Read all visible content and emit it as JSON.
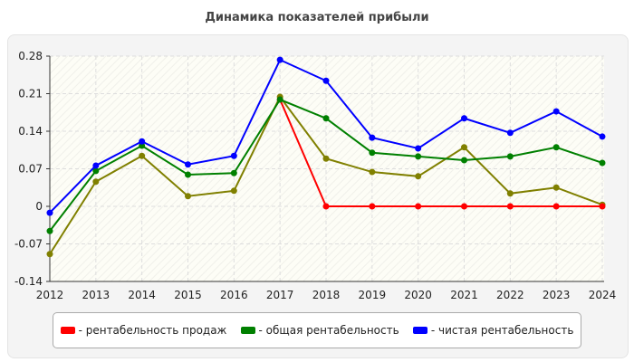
{
  "chart_data": {
    "type": "line",
    "title": "Динамика показателей прибыли",
    "x": [
      2012,
      2013,
      2014,
      2015,
      2016,
      2017,
      2018,
      2019,
      2020,
      2021,
      2022,
      2023,
      2024
    ],
    "xticks": [
      "2012",
      "2013",
      "2014",
      "2015",
      "2016",
      "2017",
      "2018",
      "2019",
      "2020",
      "2021",
      "2022",
      "2023",
      "2024"
    ],
    "yticks": [
      "0.28",
      "0.21",
      "0.14",
      "0.07",
      "0",
      "-0.07",
      "-0.14"
    ],
    "ylim": [
      -0.14,
      0.28
    ],
    "grid": true,
    "legend_position": "bottom",
    "series": [
      {
        "name": "- рентабельность продаж",
        "color": "#ff0000",
        "values": [
          null,
          null,
          null,
          null,
          null,
          0.199,
          0,
          0,
          0,
          0,
          0,
          0,
          0
        ]
      },
      {
        "name": "- общая рентабельность",
        "color": "#008000",
        "values": [
          -0.046,
          0.066,
          0.113,
          0.059,
          0.062,
          0.199,
          0.164,
          0.1,
          0.093,
          0.086,
          0.093,
          0.11,
          0.081
        ]
      },
      {
        "name": "- чистая рентабельность",
        "color": "#0000ff",
        "values": [
          -0.012,
          0.076,
          0.121,
          0.078,
          0.094,
          0.273,
          0.234,
          0.128,
          0.108,
          0.164,
          0.137,
          0.177,
          0.13
        ]
      },
      {
        "color": "#808000",
        "values": [
          -0.089,
          0.046,
          0.094,
          0.019,
          0.029,
          0.204,
          0.089,
          0.064,
          0.056,
          0.11,
          0.024,
          0.035,
          0.003
        ]
      }
    ]
  }
}
